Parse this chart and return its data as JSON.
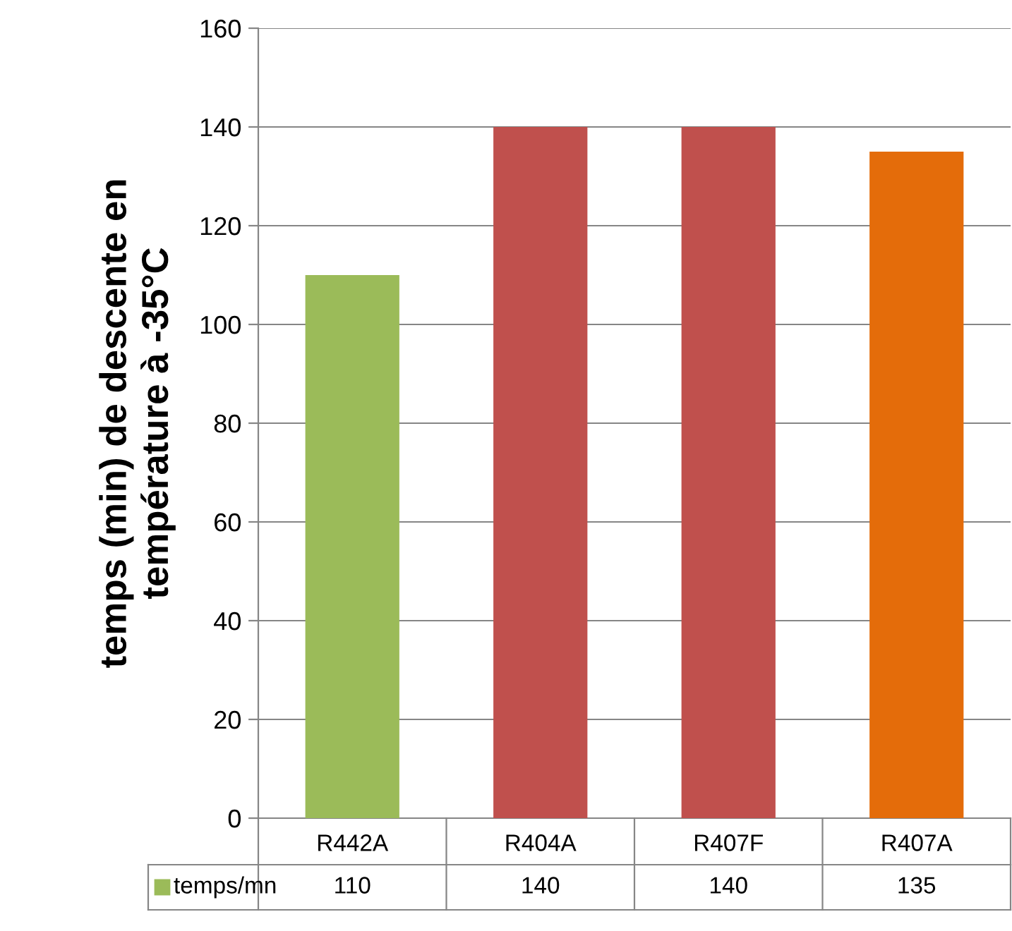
{
  "chart_data": {
    "type": "bar",
    "ylabel": "temps (min) de descente en\ntempérature à -35°C",
    "categories": [
      "R442A",
      "R404A",
      "R407F",
      "R407A"
    ],
    "series": [
      {
        "name": "temps/mn",
        "color": "#9bbb59",
        "colors": [
          "#9bbb59",
          "#c0504d",
          "#c0504d",
          "#e46c0a"
        ],
        "values": [
          110,
          140,
          140,
          135
        ]
      }
    ],
    "ylim": [
      0,
      160
    ],
    "yticks": [
      0,
      20,
      40,
      60,
      80,
      100,
      120,
      140,
      160
    ],
    "grid": "y",
    "data_labels": true,
    "legend": "bottom"
  }
}
